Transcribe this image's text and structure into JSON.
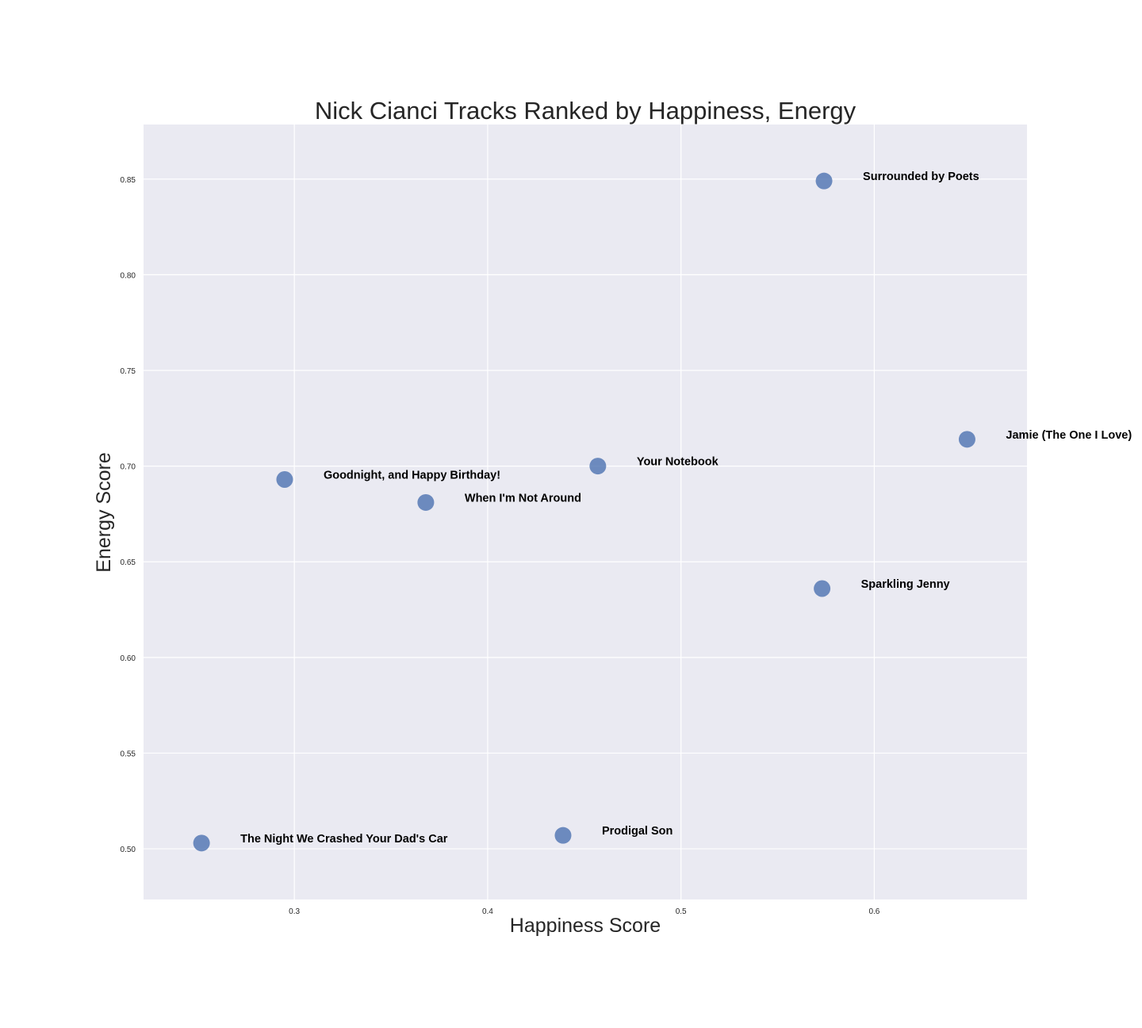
{
  "chart_data": {
    "type": "scatter",
    "title": "Nick Cianci Tracks Ranked by Happiness, Energy",
    "xlabel": "Happiness Score",
    "ylabel": "Energy Score",
    "xlim": [
      0.222,
      0.679
    ],
    "ylim": [
      0.4735,
      0.8785
    ],
    "xticks": [
      0.3,
      0.4,
      0.5,
      0.6
    ],
    "xtick_labels": [
      "0.3",
      "0.4",
      "0.5",
      "0.6"
    ],
    "yticks": [
      0.5,
      0.55,
      0.6,
      0.65,
      0.7,
      0.75,
      0.8,
      0.85
    ],
    "ytick_labels": [
      "0.50",
      "0.55",
      "0.60",
      "0.65",
      "0.70",
      "0.75",
      "0.80",
      "0.85"
    ],
    "grid": true,
    "background_color": "#eaeaf2",
    "point_color": "#4c72b0",
    "points": [
      {
        "label": "Surrounded by Poets",
        "x": 0.574,
        "y": 0.849
      },
      {
        "label": "Jamie (The One I Love)",
        "x": 0.648,
        "y": 0.714
      },
      {
        "label": "Your Notebook",
        "x": 0.457,
        "y": 0.7
      },
      {
        "label": "Goodnight, and Happy Birthday!",
        "x": 0.295,
        "y": 0.693
      },
      {
        "label": "When I'm Not Around",
        "x": 0.368,
        "y": 0.681
      },
      {
        "label": "Sparkling Jenny",
        "x": 0.573,
        "y": 0.636
      },
      {
        "label": "Prodigal Son",
        "x": 0.439,
        "y": 0.507
      },
      {
        "label": "The Night We Crashed Your Dad's Car",
        "x": 0.252,
        "y": 0.503
      }
    ]
  }
}
